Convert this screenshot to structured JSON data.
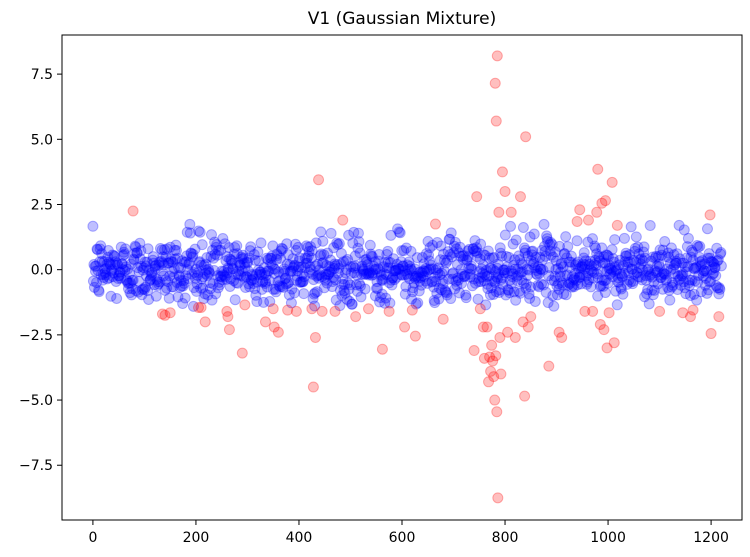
{
  "chart_data": {
    "type": "scatter",
    "title": "V1 (Gaussian Mixture)",
    "xlabel": "",
    "ylabel": "",
    "xlim": [
      -60,
      1260
    ],
    "ylim": [
      -9.6,
      9.0
    ],
    "x_ticks": [
      0,
      200,
      400,
      600,
      800,
      1000,
      1200
    ],
    "x_tick_labels": [
      "0",
      "200",
      "400",
      "600",
      "800",
      "1000",
      "1200"
    ],
    "y_ticks": [
      -7.5,
      -5.0,
      -2.5,
      0.0,
      2.5,
      5.0,
      7.5
    ],
    "y_tick_labels": [
      "−7.5",
      "−5.0",
      "−2.5",
      "0.0",
      "2.5",
      "5.0",
      "7.5"
    ],
    "grid": false,
    "legend": "none",
    "colors": {
      "blue": "#0000ff",
      "red": "#ff0000",
      "marker_alpha": 0.25
    },
    "series": [
      {
        "color": "#0000ff",
        "points_summary": {
          "x_range": [
            0,
            1220
          ],
          "count": 1220,
          "y_center": 0.0,
          "y_std": 0.6
        }
      },
      {
        "color": "#ff0000",
        "points": [
          [
            78,
            2.25
          ],
          [
            135,
            -1.7
          ],
          [
            140,
            -1.75
          ],
          [
            150,
            -1.65
          ],
          [
            205,
            -1.45
          ],
          [
            210,
            -1.45
          ],
          [
            218,
            -2.0
          ],
          [
            260,
            -1.6
          ],
          [
            262,
            -1.8
          ],
          [
            265,
            -2.3
          ],
          [
            290,
            -3.2
          ],
          [
            295,
            -1.35
          ],
          [
            335,
            -2.0
          ],
          [
            350,
            -1.5
          ],
          [
            352,
            -2.2
          ],
          [
            360,
            -2.4
          ],
          [
            378,
            -1.55
          ],
          [
            395,
            -1.6
          ],
          [
            425,
            -1.5
          ],
          [
            428,
            -4.5
          ],
          [
            432,
            -2.6
          ],
          [
            438,
            3.45
          ],
          [
            445,
            -1.6
          ],
          [
            470,
            -1.6
          ],
          [
            485,
            1.9
          ],
          [
            510,
            -1.8
          ],
          [
            535,
            -1.5
          ],
          [
            562,
            -3.05
          ],
          [
            575,
            -1.6
          ],
          [
            605,
            -2.2
          ],
          [
            620,
            -1.55
          ],
          [
            626,
            -2.55
          ],
          [
            665,
            1.75
          ],
          [
            680,
            -1.9
          ],
          [
            740,
            -3.1
          ],
          [
            745,
            2.8
          ],
          [
            752,
            -1.5
          ],
          [
            758,
            -2.2
          ],
          [
            760,
            -3.4
          ],
          [
            765,
            -2.2
          ],
          [
            768,
            -4.3
          ],
          [
            770,
            -3.35
          ],
          [
            772,
            -3.9
          ],
          [
            774,
            -2.9
          ],
          [
            776,
            -3.5
          ],
          [
            778,
            -4.1
          ],
          [
            780,
            -5.0
          ],
          [
            781,
            7.15
          ],
          [
            782,
            -3.3
          ],
          [
            783,
            5.7
          ],
          [
            784,
            -5.45
          ],
          [
            785,
            8.2
          ],
          [
            786,
            -8.75
          ],
          [
            788,
            2.2
          ],
          [
            790,
            -2.6
          ],
          [
            792,
            -4.0
          ],
          [
            795,
            3.75
          ],
          [
            800,
            3.0
          ],
          [
            805,
            -2.4
          ],
          [
            812,
            2.2
          ],
          [
            820,
            -2.6
          ],
          [
            830,
            2.8
          ],
          [
            835,
            -2.0
          ],
          [
            838,
            -4.85
          ],
          [
            840,
            5.1
          ],
          [
            845,
            -2.2
          ],
          [
            850,
            -1.8
          ],
          [
            885,
            -3.7
          ],
          [
            905,
            -2.4
          ],
          [
            910,
            -2.6
          ],
          [
            940,
            1.85
          ],
          [
            945,
            2.3
          ],
          [
            955,
            -1.6
          ],
          [
            962,
            1.9
          ],
          [
            970,
            -1.6
          ],
          [
            978,
            2.2
          ],
          [
            980,
            3.85
          ],
          [
            985,
            -2.1
          ],
          [
            988,
            2.55
          ],
          [
            992,
            -2.3
          ],
          [
            995,
            2.65
          ],
          [
            998,
            -3.0
          ],
          [
            1002,
            -1.65
          ],
          [
            1008,
            3.35
          ],
          [
            1012,
            -2.8
          ],
          [
            1018,
            1.7
          ],
          [
            1100,
            -1.6
          ],
          [
            1145,
            -1.65
          ],
          [
            1160,
            -1.8
          ],
          [
            1165,
            -1.55
          ],
          [
            1198,
            2.1
          ],
          [
            1200,
            -2.45
          ],
          [
            1215,
            -1.8
          ]
        ]
      }
    ]
  }
}
